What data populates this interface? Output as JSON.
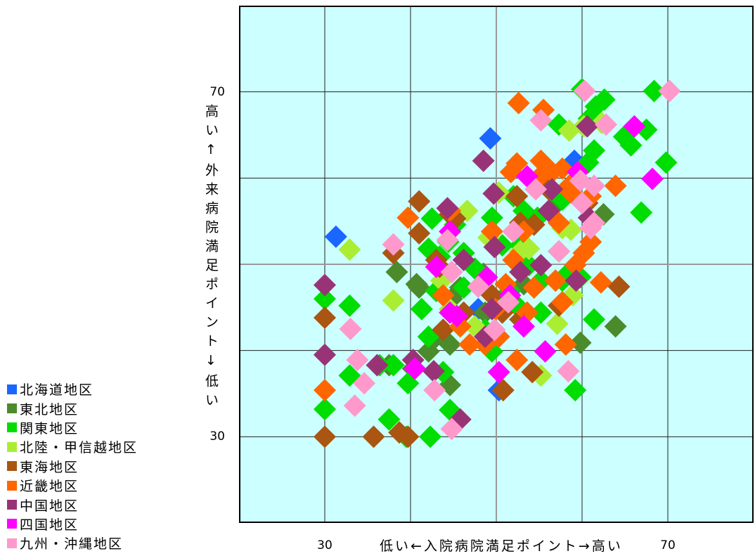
{
  "chart_data": {
    "type": "scatter",
    "xlabel": "低い←入院病院満足ポイント→高い",
    "ylabel": "高い↑外来病院満足ポイント↓低い",
    "xlim": [
      20,
      80
    ],
    "ylim": [
      20,
      80
    ],
    "x_ticks": [
      {
        "value": 30,
        "label": "30"
      },
      {
        "value": 70,
        "label": "70"
      }
    ],
    "y_ticks": [
      {
        "value": 70,
        "label": "70"
      },
      {
        "value": 30,
        "label": "30"
      }
    ],
    "grid": true,
    "grid_step": 10,
    "reference_lines": {
      "x": 50,
      "y": 50,
      "color": "#999999"
    },
    "background_color": "#ccffff",
    "legend": "bottom-left",
    "marker": "diamond",
    "series": [
      {
        "name": "北海道地区",
        "color": "#1a66ff",
        "points": [
          [
            49.3,
            64.6
          ],
          [
            31.3,
            53.2
          ],
          [
            59.1,
            62.0
          ],
          [
            50.3,
            35.4
          ],
          [
            52.8,
            54.8
          ],
          [
            47.9,
            44.8
          ]
        ]
      },
      {
        "name": "東北地区",
        "color": "#4b8b2b",
        "points": [
          [
            38.4,
            49.1
          ],
          [
            40.7,
            47.7
          ],
          [
            42.1,
            39.9
          ],
          [
            44.6,
            36.0
          ],
          [
            59.8,
            40.9
          ],
          [
            63.9,
            42.8
          ],
          [
            62.5,
            55.8
          ],
          [
            53.2,
            47.7
          ],
          [
            48.5,
            48.9
          ],
          [
            44.8,
            46.0
          ],
          [
            41.0,
            47.3
          ],
          [
            43.0,
            41.6
          ],
          [
            44.6,
            40.7
          ],
          [
            48.7,
            44.4
          ],
          [
            45.8,
            47.3
          ],
          [
            52.0,
            45.6
          ],
          [
            56.5,
            56.5
          ],
          [
            40.3,
            37.9
          ],
          [
            37.5,
            38.3
          ]
        ]
      },
      {
        "name": "関東地区",
        "color": "#00dd00",
        "points": [
          [
            68.4,
            70.1
          ],
          [
            60.0,
            70.3
          ],
          [
            62.6,
            69.1
          ],
          [
            61.6,
            68.3
          ],
          [
            60.8,
            66.9
          ],
          [
            67.5,
            65.6
          ],
          [
            64.9,
            64.8
          ],
          [
            65.7,
            63.8
          ],
          [
            69.8,
            61.8
          ],
          [
            61.4,
            63.2
          ],
          [
            57.3,
            66.2
          ],
          [
            66.9,
            56.0
          ],
          [
            60.7,
            61.8
          ],
          [
            57.7,
            57.5
          ],
          [
            54.8,
            55.4
          ],
          [
            53.2,
            56.2
          ],
          [
            49.5,
            55.4
          ],
          [
            42.5,
            55.3
          ],
          [
            45.2,
            54.6
          ],
          [
            42.1,
            51.8
          ],
          [
            43.4,
            50.9
          ],
          [
            46.2,
            51.3
          ],
          [
            44.4,
            52.6
          ],
          [
            57.3,
            51.5
          ],
          [
            50.7,
            52.2
          ],
          [
            52.8,
            52.2
          ],
          [
            53.8,
            49.9
          ],
          [
            52.8,
            44.8
          ],
          [
            55.2,
            44.4
          ],
          [
            57.7,
            48.1
          ],
          [
            61.4,
            43.6
          ],
          [
            59.2,
            35.4
          ],
          [
            32.9,
            45.2
          ],
          [
            30.0,
            46.0
          ],
          [
            30.0,
            33.2
          ],
          [
            32.9,
            37.1
          ],
          [
            37.5,
            32.0
          ],
          [
            39.5,
            30.0
          ],
          [
            42.3,
            30.0
          ],
          [
            44.6,
            33.1
          ],
          [
            39.7,
            36.2
          ],
          [
            41.3,
            44.8
          ],
          [
            42.1,
            41.6
          ],
          [
            43.8,
            37.5
          ],
          [
            38.0,
            38.3
          ],
          [
            36.4,
            38.3
          ],
          [
            43.0,
            46.9
          ],
          [
            46.2,
            47.3
          ],
          [
            48.7,
            42.4
          ],
          [
            49.5,
            39.9
          ],
          [
            51.1,
            46.4
          ],
          [
            55.2,
            48.1
          ],
          [
            52.0,
            57.9
          ],
          [
            59.8,
            48.5
          ],
          [
            58.5,
            49.1
          ],
          [
            47.5,
            49.5
          ],
          [
            51.6,
            46.9
          ]
        ]
      },
      {
        "name": "北陸・甲信越地区",
        "color": "#aaee33",
        "points": [
          [
            32.9,
            51.7
          ],
          [
            38.0,
            45.8
          ],
          [
            46.6,
            56.2
          ],
          [
            58.5,
            65.5
          ],
          [
            60.2,
            66.0
          ],
          [
            62.3,
            66.4
          ],
          [
            57.7,
            54.2
          ],
          [
            58.7,
            54.0
          ],
          [
            55.2,
            37.1
          ],
          [
            57.1,
            43.1
          ],
          [
            58.9,
            46.4
          ],
          [
            53.8,
            51.8
          ],
          [
            49.1,
            53.1
          ],
          [
            50.3,
            58.3
          ],
          [
            43.6,
            48.1
          ],
          [
            52.8,
            51.5
          ],
          [
            47.5,
            42.8
          ],
          [
            44.6,
            44.8
          ]
        ]
      },
      {
        "name": "東海地区",
        "color": "#aa5511",
        "points": [
          [
            30.0,
            43.8
          ],
          [
            30.0,
            30.0
          ],
          [
            35.7,
            30.0
          ],
          [
            38.7,
            30.5
          ],
          [
            39.7,
            30.0
          ],
          [
            41.0,
            57.3
          ],
          [
            41.0,
            53.6
          ],
          [
            38.0,
            51.3
          ],
          [
            45.2,
            55.3
          ],
          [
            44.6,
            55.8
          ],
          [
            43.4,
            49.7
          ],
          [
            43.0,
            50.5
          ],
          [
            43.8,
            42.4
          ],
          [
            46.2,
            44.4
          ],
          [
            52.4,
            57.9
          ],
          [
            54.4,
            54.6
          ],
          [
            52.8,
            43.6
          ],
          [
            54.2,
            37.5
          ],
          [
            57.3,
            45.2
          ],
          [
            64.3,
            47.4
          ],
          [
            50.8,
            35.4
          ],
          [
            60.6,
            57.1
          ],
          [
            56.1,
            58.7
          ],
          [
            49.5,
            46.4
          ],
          [
            50.7,
            44.4
          ],
          [
            52.8,
            54.8
          ]
        ]
      },
      {
        "name": "近畿地区",
        "color": "#ff6600",
        "points": [
          [
            52.6,
            68.7
          ],
          [
            55.5,
            67.9
          ],
          [
            52.4,
            61.7
          ],
          [
            51.7,
            60.7
          ],
          [
            54.8,
            59.9
          ],
          [
            56.5,
            60.7
          ],
          [
            57.7,
            61.1
          ],
          [
            58.5,
            59.1
          ],
          [
            63.9,
            59.1
          ],
          [
            39.7,
            55.4
          ],
          [
            44.6,
            56.2
          ],
          [
            49.5,
            53.8
          ],
          [
            57.3,
            54.8
          ],
          [
            61.0,
            52.6
          ],
          [
            60.2,
            51.3
          ],
          [
            59.2,
            49.9
          ],
          [
            62.2,
            47.9
          ],
          [
            56.9,
            48.1
          ],
          [
            54.4,
            47.3
          ],
          [
            53.6,
            44.4
          ],
          [
            51.1,
            47.7
          ],
          [
            49.9,
            44.8
          ],
          [
            50.3,
            41.6
          ],
          [
            48.7,
            40.7
          ],
          [
            46.9,
            40.7
          ],
          [
            45.8,
            42.8
          ],
          [
            43.8,
            46.4
          ],
          [
            58.1,
            40.7
          ],
          [
            52.4,
            38.9
          ],
          [
            30.0,
            35.4
          ],
          [
            52.0,
            50.5
          ],
          [
            53.2,
            53.8
          ],
          [
            61.0,
            57.9
          ],
          [
            55.2,
            62.0
          ],
          [
            58.7,
            58.3
          ],
          [
            57.7,
            45.6
          ]
        ]
      },
      {
        "name": "中国地区",
        "color": "#993377",
        "points": [
          [
            48.5,
            62.0
          ],
          [
            49.7,
            58.2
          ],
          [
            60.6,
            66.0
          ],
          [
            30.0,
            47.6
          ],
          [
            30.0,
            39.5
          ],
          [
            36.1,
            38.3
          ],
          [
            40.3,
            38.9
          ],
          [
            42.7,
            37.6
          ],
          [
            45.8,
            32.0
          ],
          [
            44.3,
            56.5
          ],
          [
            55.2,
            49.9
          ],
          [
            52.8,
            49.1
          ],
          [
            59.3,
            48.1
          ],
          [
            49.8,
            52.0
          ],
          [
            49.5,
            44.8
          ],
          [
            46.2,
            50.5
          ],
          [
            56.5,
            58.7
          ],
          [
            56.1,
            56.2
          ],
          [
            48.7,
            41.6
          ],
          [
            60.8,
            55.4
          ]
        ]
      },
      {
        "name": "四国地区",
        "color": "#ff00ff",
        "points": [
          [
            66.1,
            66.0
          ],
          [
            68.2,
            59.9
          ],
          [
            53.6,
            60.2
          ],
          [
            59.5,
            60.7
          ],
          [
            55.7,
            39.9
          ],
          [
            50.3,
            37.5
          ],
          [
            40.5,
            37.9
          ],
          [
            53.2,
            42.8
          ],
          [
            44.6,
            44.4
          ],
          [
            48.9,
            48.5
          ],
          [
            51.6,
            46.4
          ],
          [
            45.4,
            44.0
          ],
          [
            43.0,
            49.7
          ],
          [
            44.6,
            53.8
          ]
        ]
      },
      {
        "name": "九州・沖縄地区",
        "color": "#ff99cc",
        "points": [
          [
            60.3,
            70.1
          ],
          [
            70.2,
            70.1
          ],
          [
            62.8,
            66.2
          ],
          [
            55.2,
            66.7
          ],
          [
            61.4,
            59.1
          ],
          [
            59.8,
            59.7
          ],
          [
            54.6,
            58.7
          ],
          [
            60.0,
            57.1
          ],
          [
            61.0,
            54.2
          ],
          [
            57.3,
            51.5
          ],
          [
            38.0,
            52.3
          ],
          [
            44.3,
            52.8
          ],
          [
            44.8,
            49.1
          ],
          [
            47.9,
            47.4
          ],
          [
            51.4,
            45.6
          ],
          [
            49.8,
            42.4
          ],
          [
            33.0,
            42.5
          ],
          [
            33.8,
            38.9
          ],
          [
            34.6,
            36.2
          ],
          [
            33.5,
            33.6
          ],
          [
            42.8,
            35.4
          ],
          [
            44.8,
            30.9
          ],
          [
            58.4,
            37.6
          ],
          [
            52.0,
            53.8
          ],
          [
            61.4,
            54.8
          ]
        ]
      }
    ]
  }
}
